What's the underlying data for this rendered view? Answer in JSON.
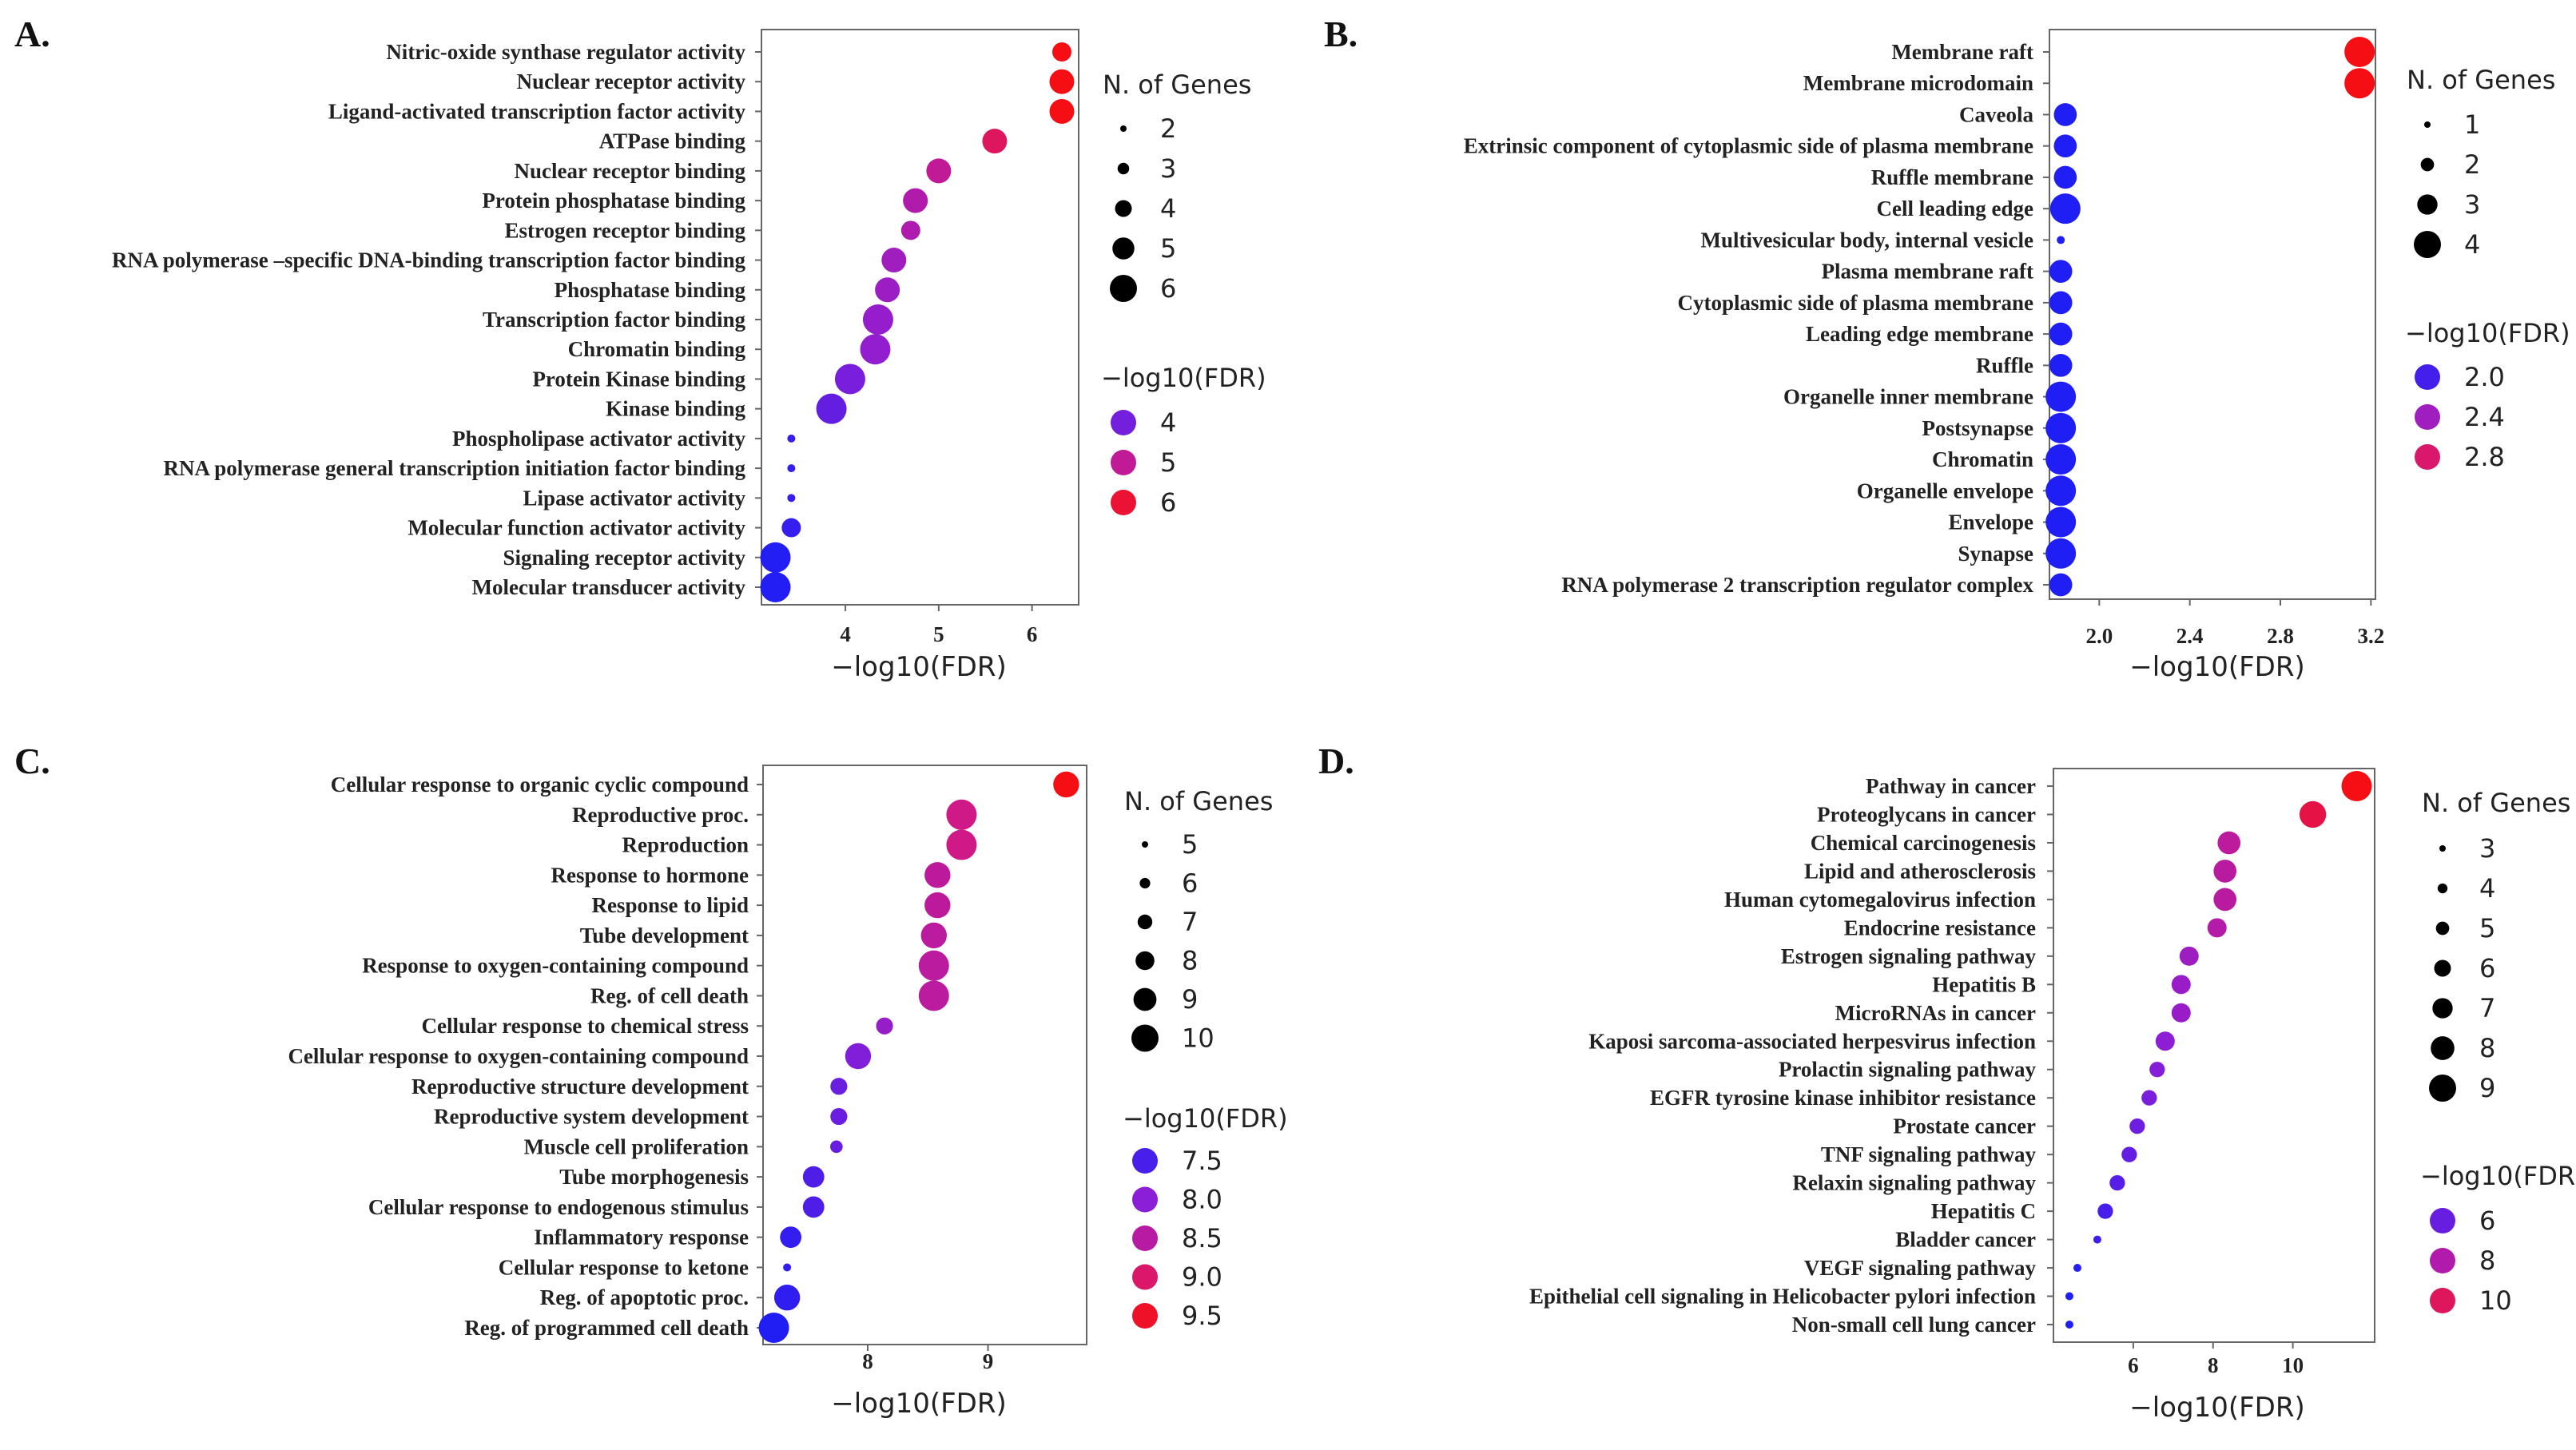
{
  "figure": {
    "panels": [
      "A",
      "B",
      "C",
      "D"
    ]
  },
  "chart_data": [
    {
      "type": "scatter",
      "panel_label": "A.",
      "xlabel": "−log10(FDR)",
      "xlim": [
        3.1,
        6.5
      ],
      "xticks": [
        4,
        5,
        6
      ],
      "size_legend_title": "N. of Genes",
      "size_legend": [
        2,
        3,
        4,
        5,
        6
      ],
      "color_legend_title": "−log10(FDR)",
      "color_legend": [
        4,
        5,
        6
      ],
      "color_range": [
        3.2,
        6.3
      ],
      "size_range": [
        2,
        6
      ],
      "points": [
        {
          "label": "Nitric-oxide synthase regulator activity",
          "x": 6.32,
          "size": 4,
          "color": 6.32
        },
        {
          "label": "Nuclear receptor activity",
          "x": 6.32,
          "size": 5,
          "color": 6.32
        },
        {
          "label": "Ligand-activated transcription factor activity",
          "x": 6.32,
          "size": 5,
          "color": 6.32
        },
        {
          "label": "ATPase binding",
          "x": 5.6,
          "size": 5,
          "color": 5.6
        },
        {
          "label": "Nuclear receptor binding",
          "x": 5.0,
          "size": 5,
          "color": 5.0
        },
        {
          "label": "Protein phosphatase binding",
          "x": 4.75,
          "size": 5,
          "color": 4.75
        },
        {
          "label": "Estrogen receptor binding",
          "x": 4.7,
          "size": 4,
          "color": 4.7
        },
        {
          "label": "RNA polymerase –specific DNA-binding transcription factor binding",
          "x": 4.52,
          "size": 5,
          "color": 4.52
        },
        {
          "label": "Phosphatase binding",
          "x": 4.45,
          "size": 5,
          "color": 4.45
        },
        {
          "label": "Transcription factor binding",
          "x": 4.35,
          "size": 6,
          "color": 4.35
        },
        {
          "label": "Chromatin binding",
          "x": 4.32,
          "size": 6,
          "color": 4.32
        },
        {
          "label": "Protein Kinase binding",
          "x": 4.05,
          "size": 6,
          "color": 4.05
        },
        {
          "label": "Kinase binding",
          "x": 3.85,
          "size": 6,
          "color": 3.85
        },
        {
          "label": "Phospholipase activator activity",
          "x": 3.42,
          "size": 2,
          "color": 3.42
        },
        {
          "label": "RNA polymerase general transcription initiation factor binding",
          "x": 3.42,
          "size": 2,
          "color": 3.42
        },
        {
          "label": "Lipase activator activity",
          "x": 3.42,
          "size": 2,
          "color": 3.42
        },
        {
          "label": "Molecular function activator activity",
          "x": 3.42,
          "size": 4,
          "color": 3.42
        },
        {
          "label": "Signaling receptor activity",
          "x": 3.25,
          "size": 6,
          "color": 3.25
        },
        {
          "label": "Molecular transducer activity",
          "x": 3.25,
          "size": 6,
          "color": 3.25
        }
      ]
    },
    {
      "type": "scatter",
      "panel_label": "B.",
      "xlabel": "−log10(FDR)",
      "xlim": [
        1.78,
        3.22
      ],
      "xticks": [
        2.0,
        2.4,
        2.8,
        3.2
      ],
      "xtick_labels": [
        "2.0",
        "2.4",
        "2.8",
        "3.2"
      ],
      "size_legend_title": "N. of Genes",
      "size_legend": [
        1,
        2,
        3,
        4
      ],
      "color_legend_title": "−log10(FDR)",
      "color_legend": [
        2.0,
        2.4,
        2.8
      ],
      "color_legend_labels": [
        "2.0",
        "2.4",
        "2.8"
      ],
      "color_range": [
        1.85,
        3.15
      ],
      "size_range": [
        1,
        4
      ],
      "points": [
        {
          "label": "Membrane raft",
          "x": 3.15,
          "size": 4,
          "color": 3.15
        },
        {
          "label": "Membrane microdomain",
          "x": 3.15,
          "size": 4,
          "color": 3.15
        },
        {
          "label": "Caveola",
          "x": 1.85,
          "size": 3,
          "color": 1.85
        },
        {
          "label": "Extrinsic component of cytoplasmic side of plasma membrane",
          "x": 1.85,
          "size": 3,
          "color": 1.85
        },
        {
          "label": "Ruffle membrane",
          "x": 1.85,
          "size": 3,
          "color": 1.85
        },
        {
          "label": "Cell leading edge",
          "x": 1.85,
          "size": 4,
          "color": 1.85
        },
        {
          "label": "Multivesicular body, internal vesicle",
          "x": 1.83,
          "size": 1,
          "color": 1.83
        },
        {
          "label": "Plasma membrane raft",
          "x": 1.83,
          "size": 3,
          "color": 1.83
        },
        {
          "label": "Cytoplasmic side of plasma membrane",
          "x": 1.83,
          "size": 3,
          "color": 1.83
        },
        {
          "label": "Leading edge membrane",
          "x": 1.83,
          "size": 3,
          "color": 1.83
        },
        {
          "label": "Ruffle",
          "x": 1.83,
          "size": 3,
          "color": 1.83
        },
        {
          "label": "Organelle inner membrane",
          "x": 1.83,
          "size": 4,
          "color": 1.83
        },
        {
          "label": "Postsynapse",
          "x": 1.83,
          "size": 4,
          "color": 1.83
        },
        {
          "label": "Chromatin",
          "x": 1.83,
          "size": 4,
          "color": 1.83
        },
        {
          "label": "Organelle envelope",
          "x": 1.83,
          "size": 4,
          "color": 1.83
        },
        {
          "label": "Envelope",
          "x": 1.83,
          "size": 4,
          "color": 1.83
        },
        {
          "label": "Synapse",
          "x": 1.83,
          "size": 4,
          "color": 1.83
        },
        {
          "label": "RNA polymerase 2 transcription regulator complex",
          "x": 1.83,
          "size": 3,
          "color": 1.83
        }
      ]
    },
    {
      "type": "scatter",
      "panel_label": "C.",
      "xlabel": "−log10(FDR)",
      "xlim": [
        7.13,
        9.82
      ],
      "xticks": [
        8,
        9
      ],
      "size_legend_title": "N. of Genes",
      "size_legend": [
        5,
        6,
        7,
        8,
        9,
        10
      ],
      "color_legend_title": "−log10(FDR)",
      "color_legend": [
        7.5,
        8.0,
        8.5,
        9.0,
        9.5
      ],
      "color_legend_labels": [
        "7.5",
        "8.0",
        "8.5",
        "9.0",
        "9.5"
      ],
      "color_range": [
        7.2,
        9.65
      ],
      "size_range": [
        5,
        10
      ],
      "points": [
        {
          "label": "Cellular response to organic cyclic compound",
          "x": 9.65,
          "size": 9,
          "color": 9.65
        },
        {
          "label": "Reproductive proc.",
          "x": 8.78,
          "size": 10,
          "color": 8.78
        },
        {
          "label": "Reproduction",
          "x": 8.78,
          "size": 10,
          "color": 8.78
        },
        {
          "label": "Response to hormone",
          "x": 8.58,
          "size": 9,
          "color": 8.58
        },
        {
          "label": "Response to lipid",
          "x": 8.58,
          "size": 9,
          "color": 8.58
        },
        {
          "label": "Tube development",
          "x": 8.55,
          "size": 9,
          "color": 8.55
        },
        {
          "label": "Response to oxygen-containing compound",
          "x": 8.55,
          "size": 10,
          "color": 8.55
        },
        {
          "label": "Reg. of cell death",
          "x": 8.55,
          "size": 10,
          "color": 8.55
        },
        {
          "label": "Cellular response to chemical stress",
          "x": 8.14,
          "size": 7,
          "color": 8.14
        },
        {
          "label": "Cellular response to oxygen-containing compound",
          "x": 7.92,
          "size": 9,
          "color": 7.92
        },
        {
          "label": "Reproductive structure development",
          "x": 7.76,
          "size": 7,
          "color": 7.76
        },
        {
          "label": "Reproductive system development",
          "x": 7.76,
          "size": 7,
          "color": 7.76
        },
        {
          "label": "Muscle cell proliferation",
          "x": 7.74,
          "size": 6,
          "color": 7.74
        },
        {
          "label": "Tube morphogenesis",
          "x": 7.55,
          "size": 8,
          "color": 7.55
        },
        {
          "label": "Cellular response to endogenous stimulus",
          "x": 7.55,
          "size": 8,
          "color": 7.55
        },
        {
          "label": "Inflammatory response",
          "x": 7.36,
          "size": 8,
          "color": 7.36
        },
        {
          "label": "Cellular response to ketone",
          "x": 7.33,
          "size": 5,
          "color": 7.33
        },
        {
          "label": "Reg. of apoptotic proc.",
          "x": 7.33,
          "size": 9,
          "color": 7.33
        },
        {
          "label": "Reg. of programmed cell death",
          "x": 7.22,
          "size": 10,
          "color": 7.22
        }
      ]
    },
    {
      "type": "scatter",
      "panel_label": "D.",
      "xlabel": "−log10(FDR)",
      "xlim": [
        4.0,
        12.05
      ],
      "xticks": [
        6,
        8,
        10
      ],
      "size_legend_title": "N. of Genes",
      "size_legend": [
        3,
        4,
        5,
        6,
        7,
        8,
        9
      ],
      "color_legend_title": "−log10(FDR)",
      "color_legend": [
        6,
        8,
        10
      ],
      "color_range": [
        4.4,
        11.6
      ],
      "size_range": [
        3,
        9
      ],
      "points": [
        {
          "label": "Pathway in cancer",
          "x": 11.6,
          "size": 9,
          "color": 11.6
        },
        {
          "label": "Proteoglycans in cancer",
          "x": 10.5,
          "size": 8,
          "color": 10.5
        },
        {
          "label": "Chemical carcinogenesis",
          "x": 8.4,
          "size": 7,
          "color": 8.4
        },
        {
          "label": "Lipid and atherosclerosis",
          "x": 8.3,
          "size": 7,
          "color": 8.3
        },
        {
          "label": "Human cytomegalovirus infection",
          "x": 8.3,
          "size": 7,
          "color": 8.3
        },
        {
          "label": "Endocrine resistance",
          "x": 8.1,
          "size": 6,
          "color": 8.1
        },
        {
          "label": "Estrogen signaling pathway",
          "x": 7.4,
          "size": 6,
          "color": 7.4
        },
        {
          "label": "Hepatitis B",
          "x": 7.2,
          "size": 6,
          "color": 7.2
        },
        {
          "label": "MicroRNAs in cancer",
          "x": 7.2,
          "size": 6,
          "color": 7.2
        },
        {
          "label": "Kaposi sarcoma-associated herpesvirus infection",
          "x": 6.8,
          "size": 6,
          "color": 6.8
        },
        {
          "label": "Prolactin signaling pathway",
          "x": 6.6,
          "size": 5,
          "color": 6.6
        },
        {
          "label": "EGFR tyrosine kinase inhibitor resistance",
          "x": 6.4,
          "size": 5,
          "color": 6.4
        },
        {
          "label": "Prostate cancer",
          "x": 6.1,
          "size": 5,
          "color": 6.1
        },
        {
          "label": "TNF signaling pathway",
          "x": 5.9,
          "size": 5,
          "color": 5.9
        },
        {
          "label": "Relaxin signaling pathway",
          "x": 5.6,
          "size": 5,
          "color": 5.6
        },
        {
          "label": "Hepatitis C",
          "x": 5.3,
          "size": 5,
          "color": 5.3
        },
        {
          "label": "Bladder cancer",
          "x": 5.1,
          "size": 3,
          "color": 5.1
        },
        {
          "label": "VEGF signaling pathway",
          "x": 4.6,
          "size": 3,
          "color": 4.6
        },
        {
          "label": "Epithelial cell signaling in Helicobacter pylori infection",
          "x": 4.4,
          "size": 3,
          "color": 4.4
        },
        {
          "label": "Non-small cell lung cancer",
          "x": 4.4,
          "size": 3,
          "color": 4.4
        }
      ]
    }
  ]
}
